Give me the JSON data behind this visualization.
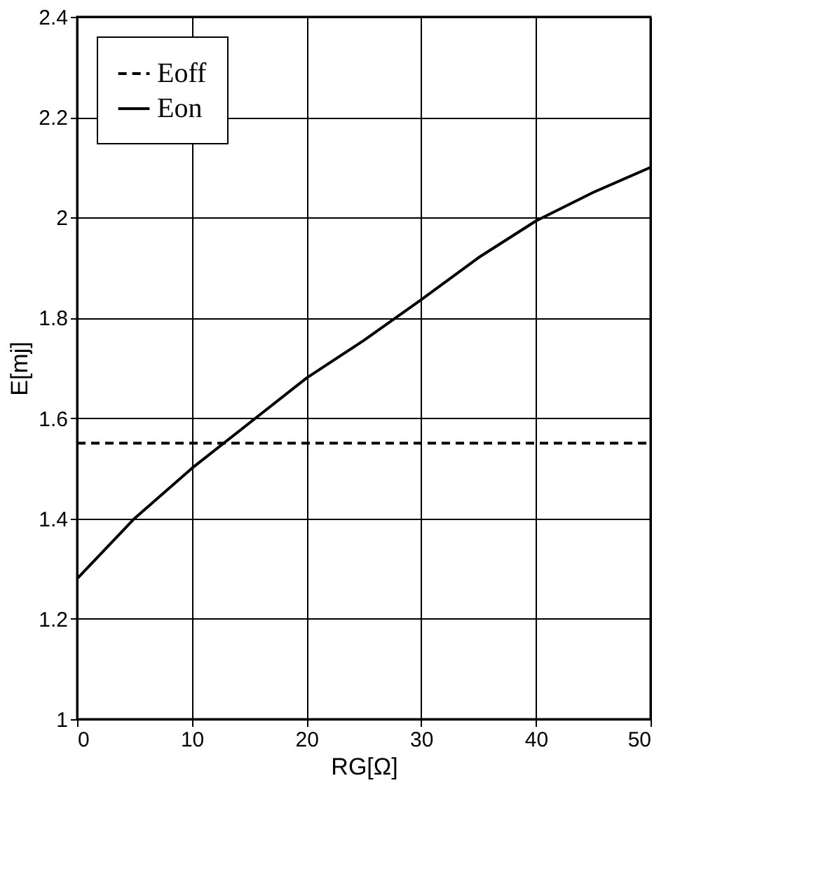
{
  "chart_data": {
    "type": "line",
    "xlabel": "RG[Ω]",
    "ylabel": "E[mj]",
    "xlim": [
      0,
      50
    ],
    "xticks": [
      0,
      10,
      20,
      30,
      40,
      50
    ],
    "ylim": [
      1,
      2.4
    ],
    "yticks": [
      1,
      1.2,
      1.4,
      1.6,
      1.8,
      2,
      2.2,
      2.4
    ],
    "grid": true,
    "legend": "top left",
    "marker": "none",
    "series": [
      {
        "name": "Eoff",
        "color": "#000000",
        "line_style": "dashed",
        "x": [
          0,
          50
        ],
        "values": [
          1.55,
          1.55
        ]
      },
      {
        "name": "Eon",
        "color": "#000000",
        "line_style": "solid",
        "x": [
          0,
          5,
          10,
          15,
          20,
          25,
          30,
          35,
          40,
          45,
          50
        ],
        "values": [
          1.28,
          1.4,
          1.5,
          1.59,
          1.68,
          1.755,
          1.836,
          1.92,
          1.993,
          2.05,
          2.1
        ]
      }
    ]
  }
}
